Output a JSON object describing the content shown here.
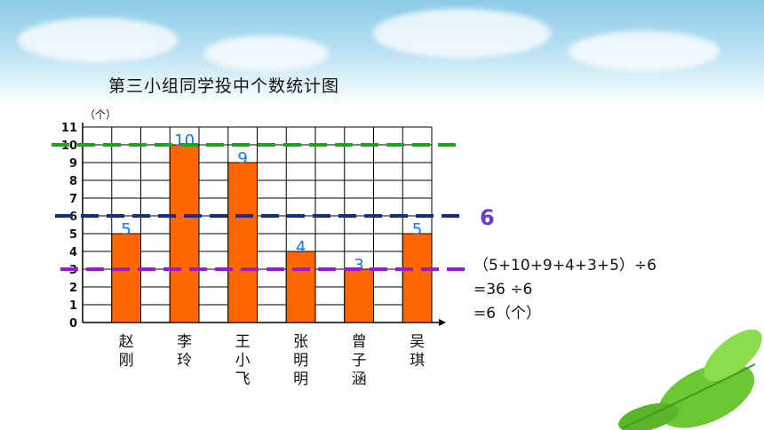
{
  "title": "第三小组同学投中个数统计图",
  "chart_data": {
    "type": "bar",
    "title": "第三小组同学投中个数统计图",
    "ylabel": "（个）",
    "ylim": [
      0,
      11
    ],
    "yticks": [
      "0",
      "1",
      "2",
      "3",
      "4",
      "5",
      "6",
      "7",
      "8",
      "9",
      "10",
      "11"
    ],
    "grid": true,
    "categories": [
      "赵刚",
      "李玲",
      "王小飞",
      "张明明",
      "曾子涵",
      "吴琪"
    ],
    "category_labels": [
      [
        "赵",
        "刚"
      ],
      [
        "李",
        "玲"
      ],
      [
        "王",
        "小",
        "飞"
      ],
      [
        "张",
        "明",
        "明"
      ],
      [
        "曾",
        "子",
        "涵"
      ],
      [
        "吴",
        "琪"
      ]
    ],
    "values": [
      5,
      10,
      9,
      4,
      3,
      5
    ],
    "data_labels": [
      "5",
      "10",
      "9",
      "4",
      "3",
      "5"
    ],
    "bar_color": "#ff6600",
    "reference_lines": [
      {
        "value": 10,
        "color": "#22a022"
      },
      {
        "value": 6,
        "color": "#102f8c",
        "label": "6"
      },
      {
        "value": 3,
        "color": "#9a1ad0"
      }
    ]
  },
  "calculation": [
    "（5+10+9+4+3+5）÷6",
    "=36 ÷6",
    "=6（个）"
  ],
  "colors": {
    "label_blue": "#1a73e8",
    "avg_label": "#6a3cc8"
  }
}
